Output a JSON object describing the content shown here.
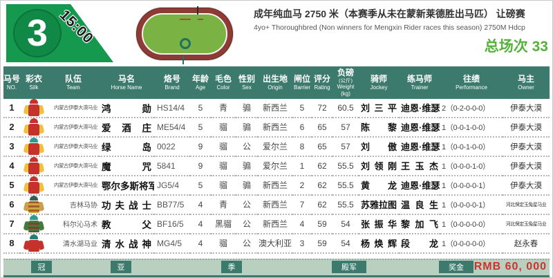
{
  "page": {
    "race_badge": {
      "number": "3",
      "time": "15:00"
    },
    "race_title_zh": "成年纯血马 2750 米（本赛季从未在蒙新莱德胜出马匹） 让磅赛",
    "race_title_en": "4yo+ Thoroughbred (Non winners for Mengxin Rider races this season) 2750M Hdcp",
    "total_races": "总场次 33"
  },
  "colors": {
    "header_bg": "#3b7a6c",
    "badge_green": "#14994f",
    "accent_green": "#55b13c",
    "footer_bg": "#b9cfc0",
    "prize_red": "#cb342c",
    "track_ring": "#8e3b35",
    "track_infield": "#7ab244"
  },
  "table": {
    "columns": [
      {
        "zh": "马号",
        "en": "NO."
      },
      {
        "zh": "彩衣",
        "en": "Silk"
      },
      {
        "zh": "队伍",
        "en": "Team"
      },
      {
        "zh": "马名",
        "en": "Horse Name"
      },
      {
        "zh": "烙号",
        "en": "Brand"
      },
      {
        "zh": "年龄",
        "en": "Age"
      },
      {
        "zh": "毛色",
        "en": "Color"
      },
      {
        "zh": "性别",
        "en": "Sex"
      },
      {
        "zh": "出生地",
        "en": "Origin"
      },
      {
        "zh": "闸位",
        "en": "Barrier"
      },
      {
        "zh": "评分",
        "en": "Rating"
      },
      {
        "zh": "负磅",
        "sub": "(公斤)",
        "en": "Weight (kg)"
      },
      {
        "zh": "骑师",
        "en": "Jockey"
      },
      {
        "zh": "练马师",
        "en": "Trainer"
      },
      {
        "zh": "往绩",
        "en": "Performance"
      },
      {
        "zh": "马主",
        "en": "Owner"
      }
    ],
    "rows": [
      {
        "no": "1",
        "team": "内蒙古伊泰大漠马业",
        "name": "鸿勋",
        "brand": "HS14/4",
        "age": "5",
        "color": "青",
        "sex": "骟",
        "origin": "新西兰",
        "barrier": "5",
        "rating": "72",
        "weight": "60.5",
        "jockey": "刘三平",
        "trainer": "迪恩·维瑟",
        "performance": "2（0-2-0-0-0）",
        "owner": "伊泰大漠",
        "owner_small": false,
        "silk": {
          "cap": "#c5322b",
          "body": "#c5322b",
          "body2": "#c5322b",
          "sleeve": "#eec23e"
        }
      },
      {
        "no": "2",
        "team": "内蒙古伊泰大漠马业",
        "name": "爱酒庄",
        "brand": "ME54/4",
        "age": "5",
        "color": "骝",
        "sex": "骟",
        "origin": "新西兰",
        "barrier": "6",
        "rating": "65",
        "weight": "57",
        "jockey": "陈黎",
        "trainer": "迪恩·维瑟",
        "performance": "1（0-0-1-0-0）",
        "owner": "伊泰大漠",
        "owner_small": false,
        "silk": {
          "cap": "#c5322b",
          "body": "#c5322b",
          "body2": "#c5322b",
          "sleeve": "#eec23e"
        }
      },
      {
        "no": "3",
        "team": "内蒙古伊泰大漠马业",
        "name": "绿岛",
        "brand": "0022",
        "age": "9",
        "color": "骝",
        "sex": "公",
        "origin": "爱尔兰",
        "barrier": "8",
        "rating": "65",
        "weight": "57",
        "jockey": "刘傲",
        "trainer": "迪恩·维瑟",
        "performance": "1（0-0-1-0-0）",
        "owner": "伊泰大漠",
        "owner_small": false,
        "silk": {
          "cap": "#2a9d8f",
          "body": "#c5322b",
          "body2": "#c5322b",
          "sleeve": "#eec23e"
        }
      },
      {
        "no": "4",
        "team": "内蒙古伊泰大漠马业",
        "name": "魔咒",
        "brand": "5841",
        "age": "9",
        "color": "骝",
        "sex": "骟",
        "origin": "爱尔兰",
        "barrier": "1",
        "rating": "62",
        "weight": "55.5",
        "jockey": "刘领刚",
        "trainer": "王玉杰",
        "performance": "1（0-0-0-1-0）",
        "owner": "伊泰大漠",
        "owner_small": false,
        "silk": {
          "cap": "#c5322b",
          "body": "#c5322b",
          "body2": "#c5322b",
          "sleeve": "#eec23e"
        }
      },
      {
        "no": "5",
        "team": "内蒙古伊泰大漠马业",
        "name": "鄂尔多斯将军",
        "brand": "JG5/4",
        "age": "5",
        "color": "骝",
        "sex": "骟",
        "origin": "新西兰",
        "barrier": "2",
        "rating": "62",
        "weight": "55.5",
        "jockey": "黄龙",
        "trainer": "迪恩·维瑟",
        "performance": "1（0-0-0-0-1）",
        "owner": "伊泰大漠",
        "owner_small": false,
        "silk": {
          "cap": "#c5322b",
          "body": "#c5322b",
          "body2": "#c5322b",
          "sleeve": "#eec23e"
        }
      },
      {
        "no": "6",
        "team": "吉林马协",
        "name": "功夫战士",
        "brand": "BB77/5",
        "age": "4",
        "color": "青",
        "sex": "公",
        "origin": "新西兰",
        "barrier": "7",
        "rating": "62",
        "weight": "55.5",
        "jockey": "苏雅拉图",
        "trainer": "温良生",
        "performance": "1（0-0-0-0-1）",
        "owner": "河北保定玉兔星马业",
        "owner_small": true,
        "silk": {
          "cap": "#355f55",
          "body": "#a35c2a",
          "body2": "#d2a53e",
          "sleeve": "#caa04a"
        }
      },
      {
        "no": "7",
        "team": "科尔沁马术",
        "name": "教父",
        "brand": "BF16/5",
        "age": "4",
        "color": "黑骝",
        "sex": "公",
        "origin": "新西兰",
        "barrier": "4",
        "rating": "59",
        "weight": "54",
        "jockey": "张振华",
        "trainer": "黎加飞",
        "performance": "1（0-0-0-0-0）",
        "owner": "河北保定玉兔星马业",
        "owner_small": true,
        "silk": {
          "cap": "#2a9d8f",
          "body": "#3f7d3a",
          "body2": "#7a4430",
          "sleeve": "#3f7d3a"
        }
      },
      {
        "no": "8",
        "team": "清水湖马业",
        "name": "清水战神",
        "brand": "MG4/5",
        "age": "4",
        "color": "骝",
        "sex": "公",
        "origin": "澳大利亚",
        "barrier": "3",
        "rating": "59",
        "weight": "54",
        "jockey": "杨焕辉",
        "trainer": "段龙",
        "performance": "1（0-0-0-0-0）",
        "owner": "赵永春",
        "owner_small": false,
        "silk": {
          "cap": "#1f7f76",
          "body": "#c5322b",
          "body2": "#c5322b",
          "sleeve": "#c5322b"
        }
      }
    ]
  },
  "footer": {
    "legend": [
      "冠",
      "亚",
      "季",
      "殿军",
      "奖金"
    ],
    "prize": "RMB 60, 000"
  }
}
